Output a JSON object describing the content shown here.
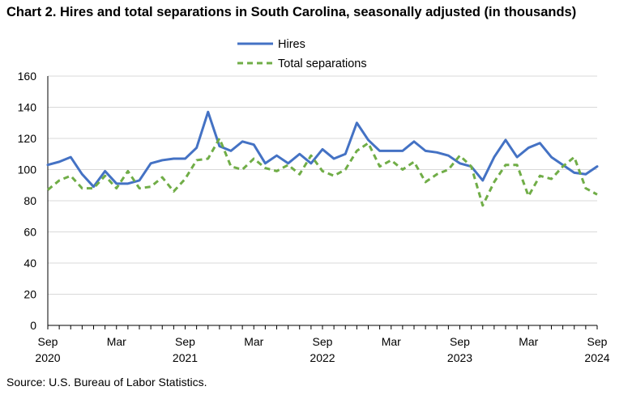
{
  "chart_data": {
    "type": "line",
    "title": "Chart 2. Hires and total separations in South Carolina, seasonally adjusted (in thousands)",
    "source": "Source: U.S. Bureau of Labor Statistics.",
    "xlabel": "",
    "ylabel": "",
    "ylim": [
      0,
      160
    ],
    "yticks": [
      0,
      20,
      40,
      60,
      80,
      100,
      120,
      140,
      160
    ],
    "grid": true,
    "legend_position": "top-center",
    "x": [
      "Sep 2020",
      "Oct 2020",
      "Nov 2020",
      "Dec 2020",
      "Jan 2021",
      "Feb 2021",
      "Mar 2021",
      "Apr 2021",
      "May 2021",
      "Jun 2021",
      "Jul 2021",
      "Aug 2021",
      "Sep 2021",
      "Oct 2021",
      "Nov 2021",
      "Dec 2021",
      "Jan 2022",
      "Feb 2022",
      "Mar 2022",
      "Apr 2022",
      "May 2022",
      "Jun 2022",
      "Jul 2022",
      "Aug 2022",
      "Sep 2022",
      "Oct 2022",
      "Nov 2022",
      "Dec 2022",
      "Jan 2023",
      "Feb 2023",
      "Mar 2023",
      "Apr 2023",
      "May 2023",
      "Jun 2023",
      "Jul 2023",
      "Aug 2023",
      "Sep 2023",
      "Oct 2023",
      "Nov 2023",
      "Dec 2023",
      "Jan 2024",
      "Feb 2024",
      "Mar 2024",
      "Apr 2024",
      "May 2024",
      "Jun 2024",
      "Jul 2024",
      "Aug 2024",
      "Sep 2024"
    ],
    "xtick_labels": [
      {
        "index": 0,
        "month": "Sep",
        "year": "2020"
      },
      {
        "index": 6,
        "month": "Mar",
        "year": ""
      },
      {
        "index": 12,
        "month": "Sep",
        "year": "2021"
      },
      {
        "index": 18,
        "month": "Mar",
        "year": ""
      },
      {
        "index": 24,
        "month": "Sep",
        "year": "2022"
      },
      {
        "index": 30,
        "month": "Mar",
        "year": ""
      },
      {
        "index": 36,
        "month": "Sep",
        "year": "2023"
      },
      {
        "index": 42,
        "month": "Mar",
        "year": ""
      },
      {
        "index": 48,
        "month": "Sep",
        "year": "2024"
      }
    ],
    "series": [
      {
        "name": "Hires",
        "color": "#4472C4",
        "style": "solid",
        "values": [
          103,
          105,
          108,
          97,
          89,
          99,
          91,
          91,
          93,
          104,
          106,
          107,
          107,
          114,
          137,
          115,
          112,
          118,
          116,
          104,
          109,
          104,
          110,
          104,
          113,
          107,
          110,
          130,
          119,
          112,
          112,
          112,
          118,
          112,
          111,
          109,
          104,
          102,
          93,
          108,
          119,
          108,
          114,
          117,
          108,
          103,
          98,
          97,
          102
        ]
      },
      {
        "name": "Total separations",
        "color": "#70AD47",
        "style": "dashed",
        "values": [
          87,
          93,
          96,
          88,
          88,
          96,
          88,
          99,
          88,
          89,
          95,
          86,
          94,
          106,
          107,
          120,
          102,
          100,
          107,
          101,
          99,
          103,
          97,
          109,
          99,
          96,
          100,
          112,
          117,
          102,
          106,
          100,
          105,
          92,
          97,
          100,
          109,
          102,
          77,
          92,
          103,
          103,
          83,
          96,
          94,
          102,
          108,
          88,
          84
        ]
      }
    ]
  }
}
